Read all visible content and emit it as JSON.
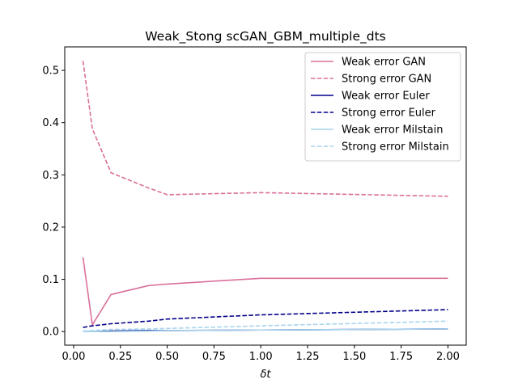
{
  "chart_data": {
    "type": "line",
    "title": "Weak_Stong scGAN_GBM_multiple_dts",
    "xlabel": "δt",
    "ylabel": "",
    "xlim": [
      -0.0475,
      2.0975
    ],
    "ylim": [
      -0.026,
      0.545
    ],
    "xticks": [
      0.0,
      0.25,
      0.5,
      0.75,
      1.0,
      1.25,
      1.5,
      1.75,
      2.0
    ],
    "xtick_labels": [
      "0.00",
      "0.25",
      "0.50",
      "0.75",
      "1.00",
      "1.25",
      "1.50",
      "1.75",
      "2.00"
    ],
    "yticks": [
      0.0,
      0.1,
      0.2,
      0.3,
      0.4,
      0.5
    ],
    "ytick_labels": [
      "0.0",
      "0.1",
      "0.2",
      "0.3",
      "0.4",
      "0.5"
    ],
    "grid": false,
    "legend_position": "top-right",
    "x": [
      0.05,
      0.1,
      0.2,
      0.4,
      0.5,
      1.0,
      2.0
    ],
    "series": [
      {
        "name": "Weak error GAN",
        "color": "#d9709b",
        "dashed": false,
        "values": [
          0.142,
          0.013,
          0.071,
          0.088,
          0.091,
          0.102,
          0.102
        ]
      },
      {
        "name": "Strong error GAN",
        "color": "#d9709b",
        "dashed": true,
        "values": [
          0.518,
          0.388,
          0.304,
          0.275,
          0.262,
          0.266,
          0.259
        ]
      },
      {
        "name": "Weak error Euler",
        "color": "#00008b",
        "dashed": false,
        "values": [
          0.0,
          0.0,
          0.001,
          0.002,
          0.002,
          0.003,
          0.005
        ]
      },
      {
        "name": "Strong error Euler",
        "color": "#00008b",
        "dashed": true,
        "values": [
          0.008,
          0.011,
          0.015,
          0.02,
          0.024,
          0.032,
          0.042
        ]
      },
      {
        "name": "Weak error Milstain",
        "color": "#a8d4ec",
        "dashed": false,
        "values": [
          0.0,
          0.0,
          0.0,
          0.001,
          0.002,
          0.003,
          0.005
        ]
      },
      {
        "name": "Strong error Milstain",
        "color": "#a8d4ec",
        "dashed": true,
        "values": [
          0.001,
          0.002,
          0.004,
          0.005,
          0.006,
          0.011,
          0.02
        ]
      }
    ]
  }
}
